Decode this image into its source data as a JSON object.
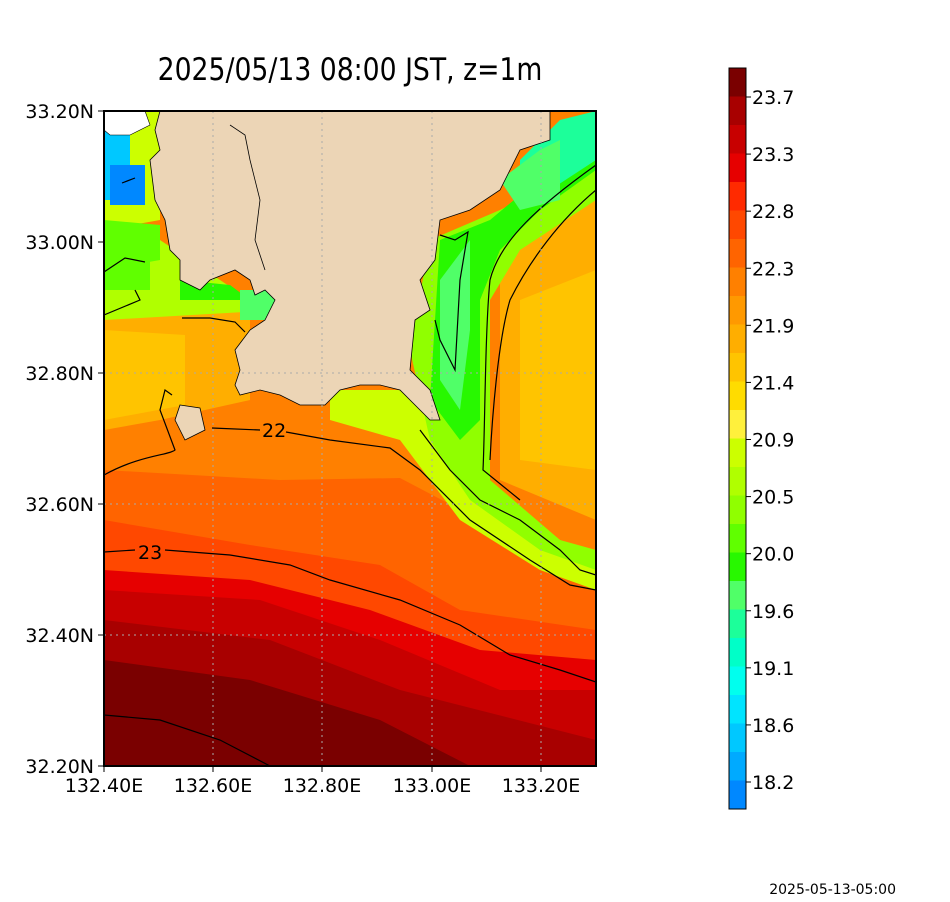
{
  "title": "2025/05/13 08:00 JST, z=1m",
  "timestamp": "2025-05-13-05:00",
  "map": {
    "lon_range": [
      132.4,
      133.3
    ],
    "lat_range": [
      32.2,
      33.2
    ],
    "lon_ticks": [
      "132.40E",
      "132.60E",
      "132.80E",
      "133.00E",
      "133.20E"
    ],
    "lat_ticks": [
      "33.20N",
      "33.00N",
      "32.80N",
      "32.60N",
      "32.40N",
      "32.20N"
    ],
    "land_color": "#ecd5b6",
    "contour_labels": [
      "22",
      "23"
    ]
  },
  "colorbar": {
    "labels": [
      "23.7",
      "23.3",
      "22.8",
      "22.3",
      "21.9",
      "21.4",
      "20.9",
      "20.5",
      "20.0",
      "19.6",
      "19.1",
      "18.6",
      "18.2"
    ],
    "colors": [
      "#7a0000",
      "#a80000",
      "#c80000",
      "#e60000",
      "#ff2a00",
      "#ff4800",
      "#ff6400",
      "#ff8000",
      "#ff9900",
      "#ffae00",
      "#ffc400",
      "#ffdc00",
      "#fff03c",
      "#ccff00",
      "#b0ff00",
      "#90ff00",
      "#60ff00",
      "#28f800",
      "#50ff68",
      "#1cff9a",
      "#00ffc8",
      "#00ffee",
      "#00e4ff",
      "#00c8ff",
      "#00aaff",
      "#0088ff"
    ]
  }
}
